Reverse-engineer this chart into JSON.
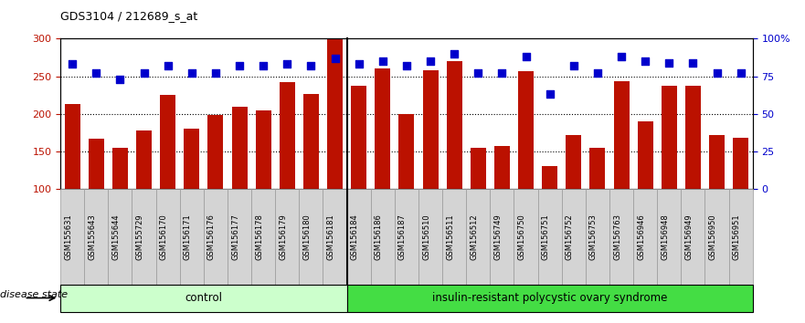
{
  "title": "GDS3104 / 212689_s_at",
  "categories": [
    "GSM155631",
    "GSM155643",
    "GSM155644",
    "GSM155729",
    "GSM156170",
    "GSM156171",
    "GSM156176",
    "GSM156177",
    "GSM156178",
    "GSM156179",
    "GSM156180",
    "GSM156181",
    "GSM156184",
    "GSM156186",
    "GSM156187",
    "GSM156510",
    "GSM156511",
    "GSM156512",
    "GSM156749",
    "GSM156750",
    "GSM156751",
    "GSM156752",
    "GSM156753",
    "GSM156763",
    "GSM156946",
    "GSM156948",
    "GSM156949",
    "GSM156950",
    "GSM156951"
  ],
  "bar_values": [
    213,
    167,
    155,
    178,
    225,
    180,
    198,
    210,
    205,
    242,
    227,
    299,
    238,
    260,
    200,
    258,
    270,
    155,
    157,
    257,
    130,
    172,
    155,
    243,
    190,
    238,
    238,
    172,
    168
  ],
  "percentile_values": [
    83,
    77,
    73,
    77,
    82,
    77,
    77,
    82,
    82,
    83,
    82,
    87,
    83,
    85,
    82,
    85,
    90,
    77,
    77,
    88,
    63,
    82,
    77,
    88,
    85,
    84,
    84,
    77,
    77
  ],
  "group_labels": [
    "control",
    "insulin-resistant polycystic ovary syndrome"
  ],
  "group_split": 12,
  "ylim_left": [
    100,
    300
  ],
  "ylim_right": [
    0,
    100
  ],
  "yticks_left": [
    100,
    150,
    200,
    250,
    300
  ],
  "yticks_right": [
    0,
    25,
    50,
    75,
    100
  ],
  "ytick_labels_right": [
    "0",
    "25",
    "50",
    "75",
    "100%"
  ],
  "bar_color": "#bb1100",
  "scatter_color": "#0000cc",
  "ctrl_color": "#ccffcc",
  "dis_color": "#44dd44",
  "grid_values": [
    150,
    200,
    250
  ],
  "disease_state_label": "disease state"
}
